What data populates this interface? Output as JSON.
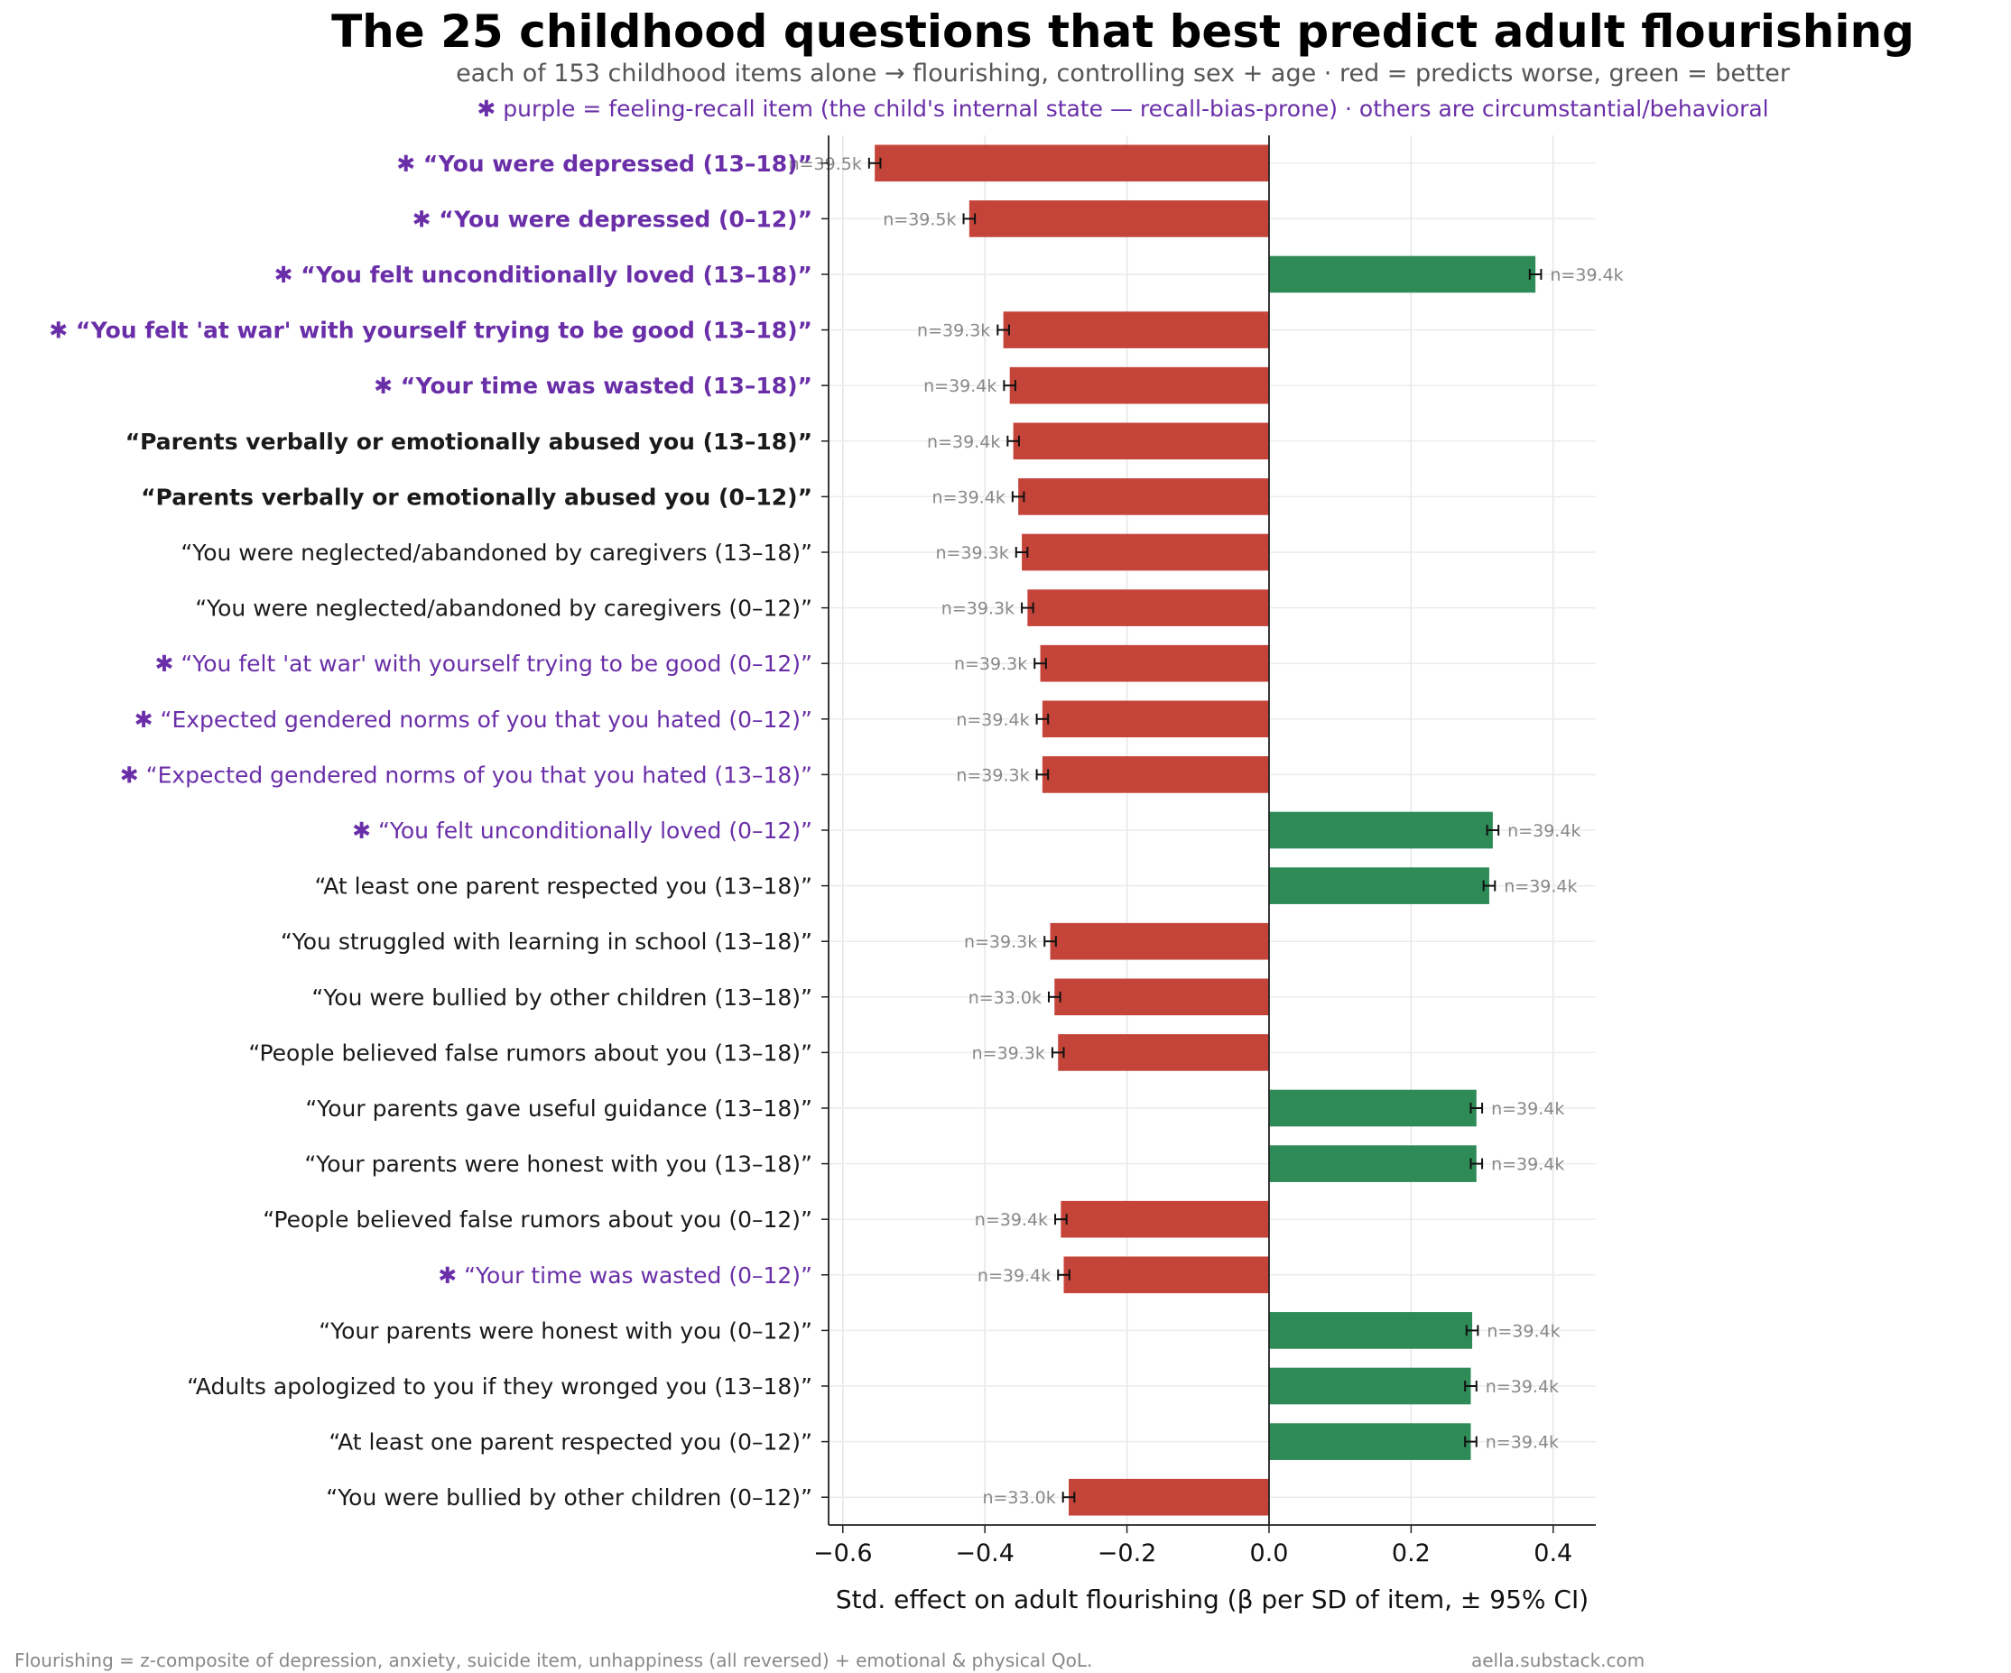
{
  "chart_data": {
    "type": "bar",
    "orientation": "horizontal",
    "title": "The 25 childhood questions that best predict adult flourishing",
    "subtitle": "each of 153 childhood items alone → flourishing, controlling sex + age · red = predicts worse, green = better",
    "note": "✱ purple = feeling-recall item (the child's internal state — recall-bias-prone) · others are circumstantial/behavioral",
    "xlabel": "Std. effect on adult flourishing (β per SD of item, ± 95% CI)",
    "xlim": [
      -0.62,
      0.46
    ],
    "xticks": [
      "−0.6",
      "−0.4",
      "−0.2",
      "0.0",
      "0.2",
      "0.4"
    ],
    "xtick_values": [
      -0.6,
      -0.4,
      -0.2,
      0.0,
      0.2,
      0.4
    ],
    "grid": true,
    "colors": {
      "negative": "#c5443a",
      "positive": "#2e8b57",
      "feeling": "#6a2fa8",
      "plain": "#1a1a1a",
      "n_label": "#888888"
    },
    "items": [
      {
        "label": "✱ “You were depressed (13–18)”",
        "value": -0.555,
        "ci": 0.008,
        "n": "n=39.5k",
        "feeling": true,
        "bold": true
      },
      {
        "label": "✱ “You were depressed (0–12)”",
        "value": -0.422,
        "ci": 0.008,
        "n": "n=39.5k",
        "feeling": true,
        "bold": true
      },
      {
        "label": "✱ “You felt unconditionally loved (13–18)”",
        "value": 0.375,
        "ci": 0.008,
        "n": "n=39.4k",
        "feeling": true,
        "bold": true
      },
      {
        "label": "✱ “You felt 'at war' with yourself trying to be good (13–18)”",
        "value": -0.374,
        "ci": 0.008,
        "n": "n=39.3k",
        "feeling": true,
        "bold": true
      },
      {
        "label": "✱ “Your time was wasted (13–18)”",
        "value": -0.365,
        "ci": 0.008,
        "n": "n=39.4k",
        "feeling": true,
        "bold": true
      },
      {
        "label": "“Parents verbally or emotionally abused you (13–18)”",
        "value": -0.36,
        "ci": 0.008,
        "n": "n=39.4k",
        "feeling": false,
        "bold": true
      },
      {
        "label": "“Parents verbally or emotionally abused you (0–12)”",
        "value": -0.353,
        "ci": 0.008,
        "n": "n=39.4k",
        "feeling": false,
        "bold": true
      },
      {
        "label": "“You were neglected/abandoned by caregivers (13–18)”",
        "value": -0.348,
        "ci": 0.008,
        "n": "n=39.3k",
        "feeling": false,
        "bold": false
      },
      {
        "label": "“You were neglected/abandoned by caregivers (0–12)”",
        "value": -0.34,
        "ci": 0.008,
        "n": "n=39.3k",
        "feeling": false,
        "bold": false
      },
      {
        "label": "✱ “You felt 'at war' with yourself trying to be good (0–12)”",
        "value": -0.322,
        "ci": 0.008,
        "n": "n=39.3k",
        "feeling": true,
        "bold": false
      },
      {
        "label": "✱ “Expected gendered norms of you that you hated (0–12)”",
        "value": -0.319,
        "ci": 0.008,
        "n": "n=39.4k",
        "feeling": true,
        "bold": false
      },
      {
        "label": "✱ “Expected gendered norms of you that you hated (13–18)”",
        "value": -0.319,
        "ci": 0.008,
        "n": "n=39.3k",
        "feeling": true,
        "bold": false
      },
      {
        "label": "✱ “You felt unconditionally loved (0–12)”",
        "value": 0.315,
        "ci": 0.008,
        "n": "n=39.4k",
        "feeling": true,
        "bold": false
      },
      {
        "label": "“At least one parent respected you (13–18)”",
        "value": 0.31,
        "ci": 0.008,
        "n": "n=39.4k",
        "feeling": false,
        "bold": false
      },
      {
        "label": "“You struggled with learning in school (13–18)”",
        "value": -0.308,
        "ci": 0.008,
        "n": "n=39.3k",
        "feeling": false,
        "bold": false
      },
      {
        "label": "“You were bullied by other children (13–18)”",
        "value": -0.302,
        "ci": 0.008,
        "n": "n=33.0k",
        "feeling": false,
        "bold": false
      },
      {
        "label": "“People believed false rumors about you (13–18)”",
        "value": -0.297,
        "ci": 0.008,
        "n": "n=39.3k",
        "feeling": false,
        "bold": false
      },
      {
        "label": "“Your parents gave useful guidance (13–18)”",
        "value": 0.292,
        "ci": 0.008,
        "n": "n=39.4k",
        "feeling": false,
        "bold": false
      },
      {
        "label": "“Your parents were honest with you (13–18)”",
        "value": 0.292,
        "ci": 0.008,
        "n": "n=39.4k",
        "feeling": false,
        "bold": false
      },
      {
        "label": "“People believed false rumors about you (0–12)”",
        "value": -0.293,
        "ci": 0.008,
        "n": "n=39.4k",
        "feeling": false,
        "bold": false
      },
      {
        "label": "✱ “Your time was wasted (0–12)”",
        "value": -0.289,
        "ci": 0.008,
        "n": "n=39.4k",
        "feeling": true,
        "bold": false
      },
      {
        "label": "“Your parents were honest with you (0–12)”",
        "value": 0.286,
        "ci": 0.008,
        "n": "n=39.4k",
        "feeling": false,
        "bold": false
      },
      {
        "label": "“Adults apologized to you if they wronged you (13–18)”",
        "value": 0.284,
        "ci": 0.008,
        "n": "n=39.4k",
        "feeling": false,
        "bold": false
      },
      {
        "label": "“At least one parent respected you (0–12)”",
        "value": 0.284,
        "ci": 0.008,
        "n": "n=39.4k",
        "feeling": false,
        "bold": false
      },
      {
        "label": "“You were bullied by other children (0–12)”",
        "value": -0.282,
        "ci": 0.008,
        "n": "n=33.0k",
        "feeling": false,
        "bold": false
      }
    ]
  },
  "footer": {
    "left": "Flourishing = z-composite of depression, anxiety, suicide item, unhappiness (all reversed) + emotional & physical QoL.",
    "right": "aella.substack.com"
  }
}
